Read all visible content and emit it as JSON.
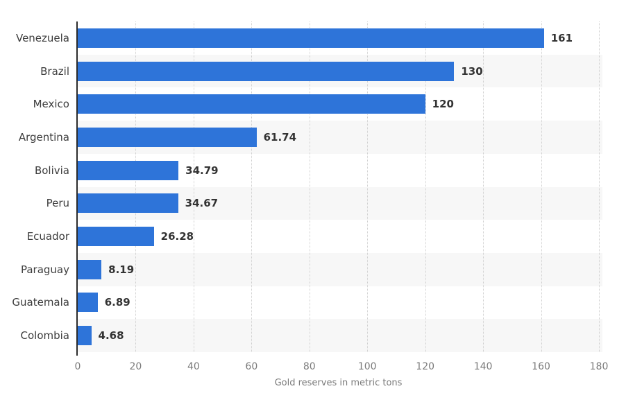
{
  "chart_data": {
    "type": "bar",
    "orientation": "horizontal",
    "categories": [
      "Venezuela",
      "Brazil",
      "Mexico",
      "Argentina",
      "Bolivia",
      "Peru",
      "Ecuador",
      "Paraguay",
      "Guatemala",
      "Colombia"
    ],
    "values": [
      161,
      130,
      120,
      61.74,
      34.79,
      34.67,
      26.28,
      8.19,
      6.89,
      4.68
    ],
    "value_labels": [
      "161",
      "130",
      "120",
      "61.74",
      "34.79",
      "34.67",
      "26.28",
      "8.19",
      "6.89",
      "4.68"
    ],
    "title": "",
    "xlabel": "Gold reserves in metric tons",
    "ylabel": "",
    "xlim": [
      0,
      180
    ],
    "x_ticks": [
      0,
      20,
      40,
      60,
      80,
      100,
      120,
      140,
      160,
      180
    ],
    "grid": "vertical-dotted",
    "legend": "none",
    "colors": {
      "bar": "#2e74d9",
      "row_stripe": "#f7f7f7",
      "category_label": "#3c3c3c",
      "value_label": "#333333",
      "tick_label": "#7a7a7a",
      "axis_line": "#2b2b2b",
      "gridline": "#cfcfcf",
      "background": "#ffffff"
    }
  }
}
